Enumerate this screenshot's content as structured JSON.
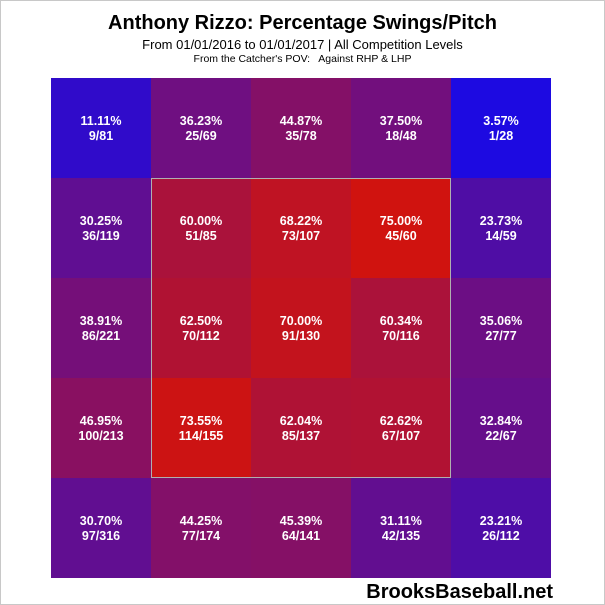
{
  "colors": {
    "low": "#0000ff",
    "high": "#ff0000",
    "zone_border": "#b0b0b0",
    "text": "#ffffff"
  },
  "chart_data": {
    "type": "heatmap",
    "title": "Anthony Rizzo: Percentage Swings/Pitch",
    "subtitle": "From 01/01/2016 to 01/01/2017 | All Competition Levels",
    "caption": "From the Catcher's POV:   Against RHP & LHP",
    "rows": 5,
    "cols": 5,
    "cells": [
      [
        {
          "pct": "11.11%",
          "count": "9/81",
          "value": 11.11
        },
        {
          "pct": "36.23%",
          "count": "25/69",
          "value": 36.23
        },
        {
          "pct": "44.87%",
          "count": "35/78",
          "value": 44.87
        },
        {
          "pct": "37.50%",
          "count": "18/48",
          "value": 37.5
        },
        {
          "pct": "3.57%",
          "count": "1/28",
          "value": 3.57
        }
      ],
      [
        {
          "pct": "30.25%",
          "count": "36/119",
          "value": 30.25
        },
        {
          "pct": "60.00%",
          "count": "51/85",
          "value": 60.0
        },
        {
          "pct": "68.22%",
          "count": "73/107",
          "value": 68.22
        },
        {
          "pct": "75.00%",
          "count": "45/60",
          "value": 75.0
        },
        {
          "pct": "23.73%",
          "count": "14/59",
          "value": 23.73
        }
      ],
      [
        {
          "pct": "38.91%",
          "count": "86/221",
          "value": 38.91
        },
        {
          "pct": "62.50%",
          "count": "70/112",
          "value": 62.5
        },
        {
          "pct": "70.00%",
          "count": "91/130",
          "value": 70.0
        },
        {
          "pct": "60.34%",
          "count": "70/116",
          "value": 60.34
        },
        {
          "pct": "35.06%",
          "count": "27/77",
          "value": 35.06
        }
      ],
      [
        {
          "pct": "46.95%",
          "count": "100/213",
          "value": 46.95
        },
        {
          "pct": "73.55%",
          "count": "114/155",
          "value": 73.55
        },
        {
          "pct": "62.04%",
          "count": "85/137",
          "value": 62.04
        },
        {
          "pct": "62.62%",
          "count": "67/107",
          "value": 62.62
        },
        {
          "pct": "32.84%",
          "count": "22/67",
          "value": 32.84
        }
      ],
      [
        {
          "pct": "30.70%",
          "count": "97/316",
          "value": 30.7
        },
        {
          "pct": "44.25%",
          "count": "77/174",
          "value": 44.25
        },
        {
          "pct": "45.39%",
          "count": "64/141",
          "value": 45.39
        },
        {
          "pct": "31.11%",
          "count": "42/135",
          "value": 31.11
        },
        {
          "pct": "23.21%",
          "count": "26/112",
          "value": 23.21
        }
      ]
    ],
    "strike_zone": {
      "row_start": 1,
      "row_end": 3,
      "col_start": 1,
      "col_end": 3
    }
  },
  "watermark": "BrooksBaseball.net"
}
